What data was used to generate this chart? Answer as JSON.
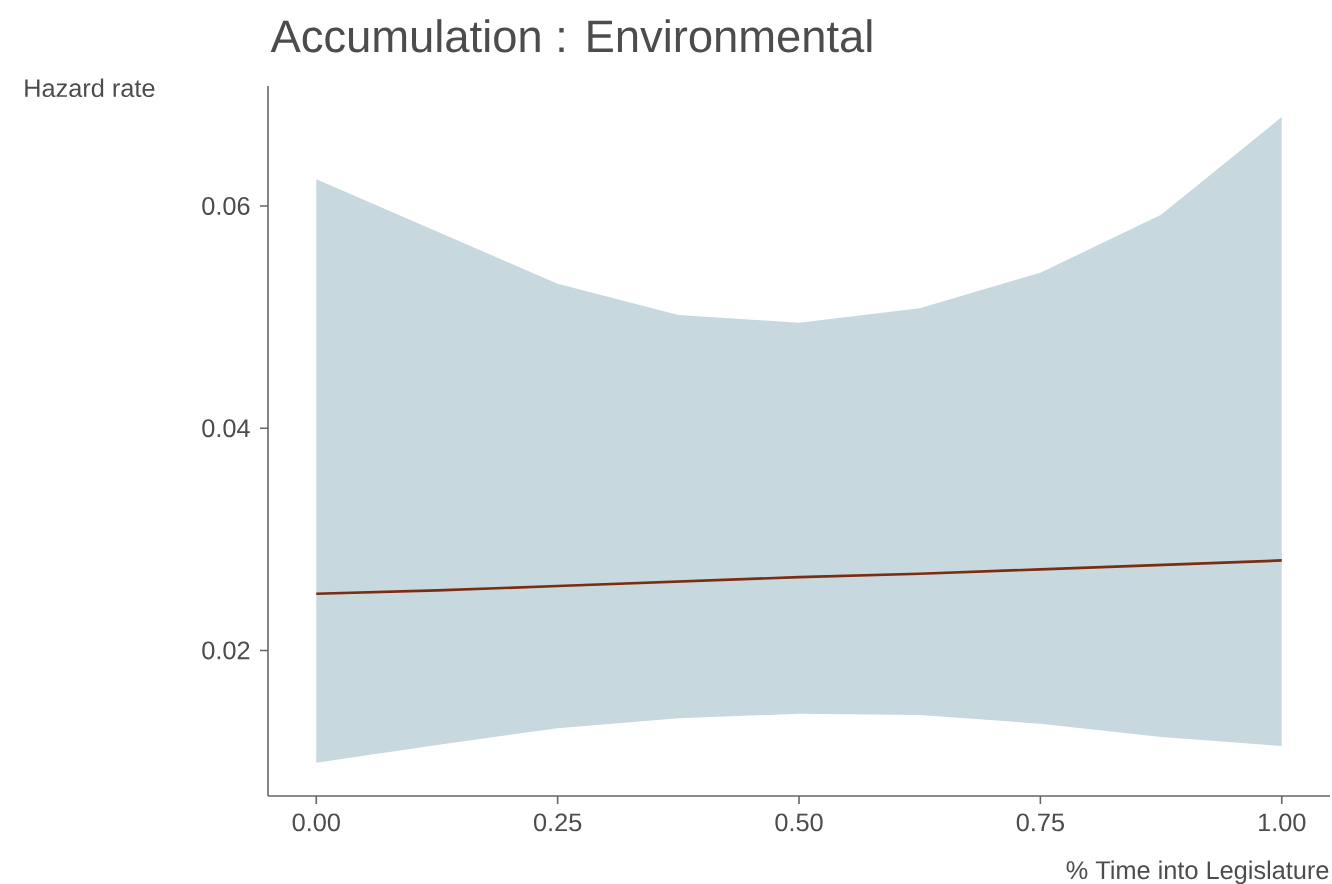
{
  "chart_data": {
    "type": "line",
    "title": "Accumulation : Environmental",
    "xlabel": "% Time into Legislature",
    "ylabel": "Hazard rate",
    "xlim": [
      -0.05,
      1.05
    ],
    "ylim": [
      0.0069,
      0.0708
    ],
    "xticks": [
      {
        "value": 0,
        "label": "0.00"
      },
      {
        "value": 0.25,
        "label": "0.25"
      },
      {
        "value": 0.5,
        "label": "0.50"
      },
      {
        "value": 0.75,
        "label": "0.75"
      },
      {
        "value": 1,
        "label": "1.00"
      }
    ],
    "yticks": [
      {
        "value": 0.02,
        "label": "0.02"
      },
      {
        "value": 0.04,
        "label": "0.04"
      },
      {
        "value": 0.06,
        "label": "0.06"
      }
    ],
    "series": [
      {
        "color": "#7b2d12",
        "x": [
          0,
          0.125,
          0.25,
          0.375,
          0.5,
          0.625,
          0.75,
          0.875,
          1
        ],
        "values": [
          0.0251,
          0.0254,
          0.0258,
          0.0262,
          0.0266,
          0.0269,
          0.0273,
          0.0277,
          0.0281
        ],
        "lower": [
          0.0099,
          0.0115,
          0.013,
          0.0139,
          0.0143,
          0.0142,
          0.0134,
          0.0122,
          0.0114
        ],
        "upper": [
          0.0624,
          0.0577,
          0.053,
          0.0502,
          0.0495,
          0.0508,
          0.054,
          0.0592,
          0.068
        ]
      }
    ]
  }
}
